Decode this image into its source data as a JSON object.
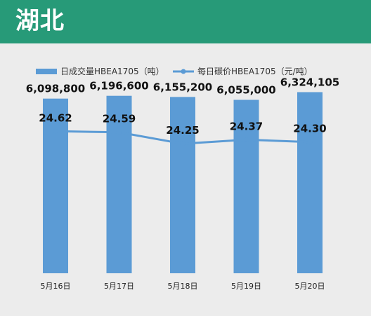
{
  "header": {
    "title": "湖北"
  },
  "colors": {
    "header_bg": "#279a78",
    "bar": "#5b9bd5",
    "line": "#5b9bd5",
    "background": "#ececec"
  },
  "chart_data": {
    "type": "bar",
    "categories": [
      "5月16日",
      "5月17日",
      "5月18日",
      "5月19日",
      "5月20日"
    ],
    "series": [
      {
        "name": "日成交量HBEA1705（吨）",
        "type": "bar",
        "values": [
          6098800,
          6196600,
          6155200,
          6055000,
          6324105
        ],
        "labels": [
          "6,098,800",
          "6,196,600",
          "6,155,200",
          "6,055,000",
          "6,324,105"
        ],
        "ylim": [
          0,
          6850000
        ]
      },
      {
        "name": "每日碳价HBEA1705（元/吨）",
        "type": "line",
        "values": [
          24.62,
          24.59,
          24.25,
          24.37,
          24.3
        ],
        "labels": [
          "24.62",
          "24.59",
          "24.25",
          "24.37",
          "24.30"
        ],
        "ylim": [
          21.0,
          25.6
        ]
      }
    ],
    "legend_position": "top-left",
    "grid": false
  }
}
